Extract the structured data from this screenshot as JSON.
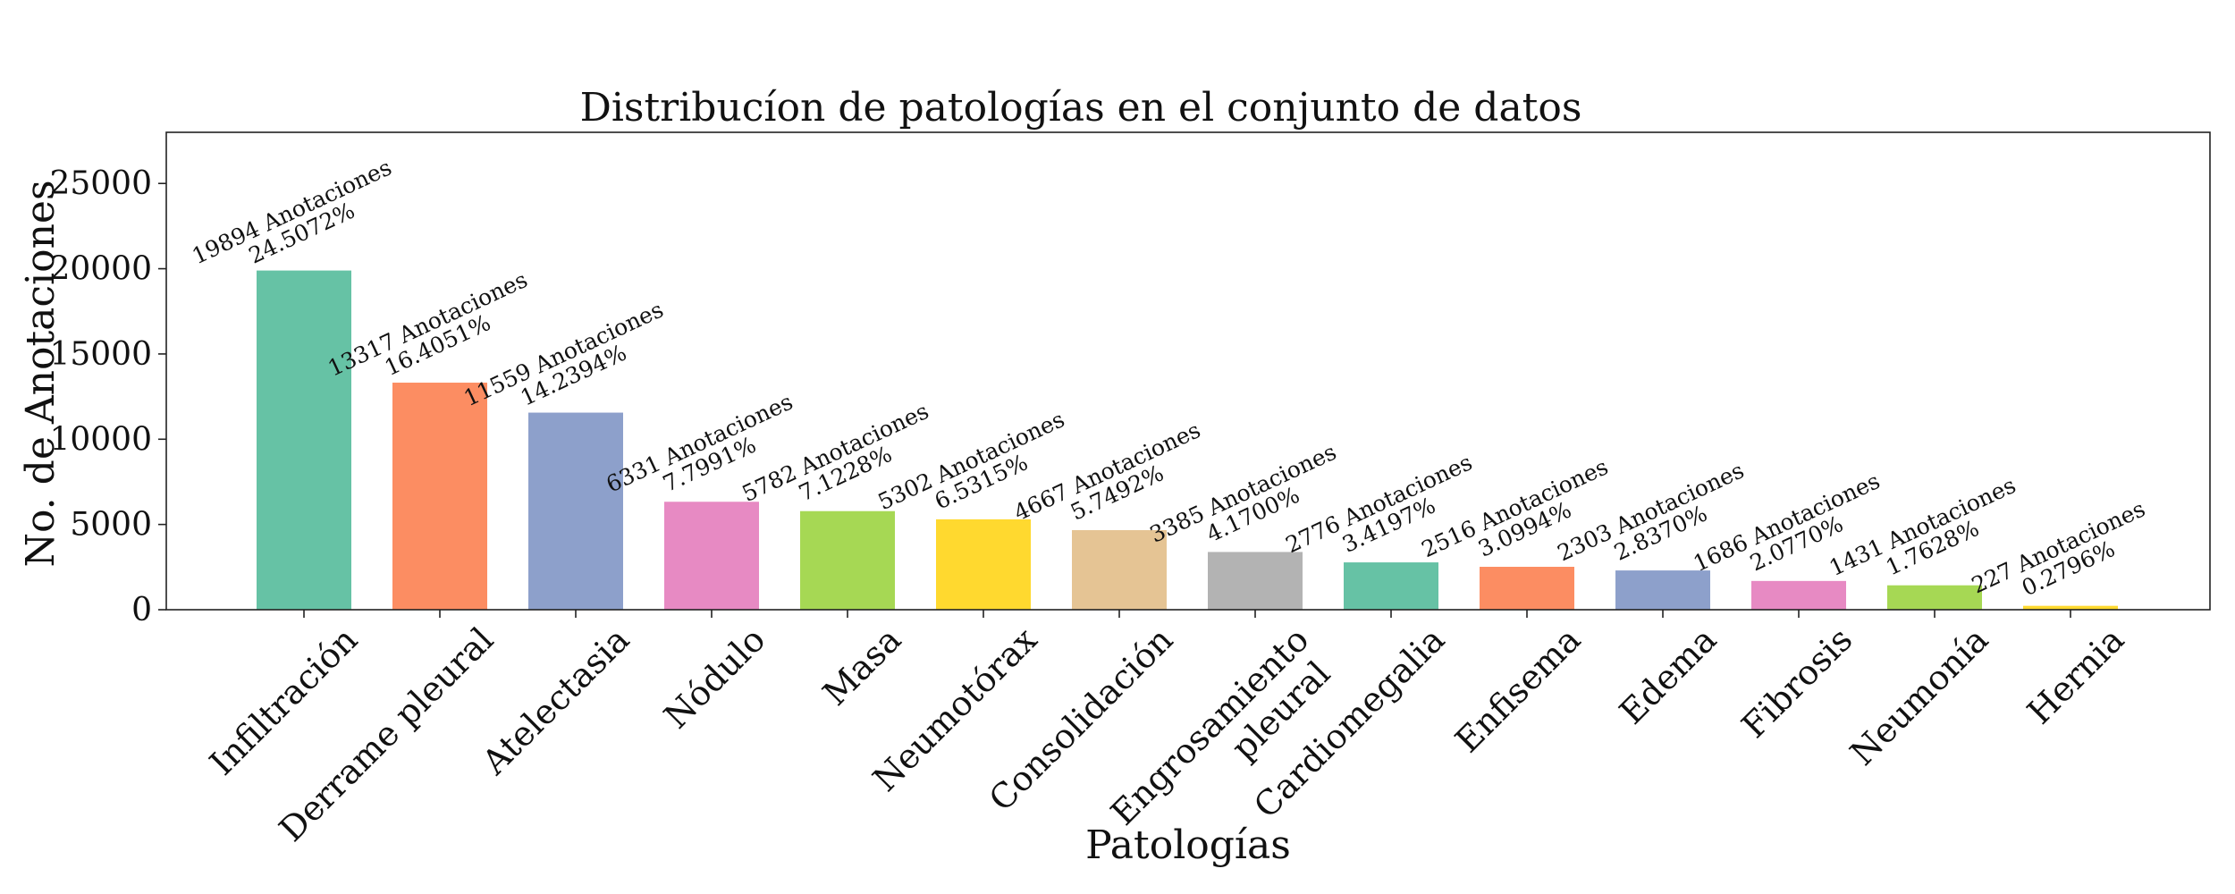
{
  "chart_data": {
    "type": "bar",
    "title": "Distribucíon de patologías en el conjunto de datos",
    "xlabel": "Patologías",
    "ylabel": "No. de Anotaciones",
    "ylim": [
      0,
      28000
    ],
    "yticks": [
      0,
      5000,
      10000,
      15000,
      20000,
      25000
    ],
    "grid": false,
    "categories": [
      "Infiltración",
      "Derrame pleural",
      "Atelectasia",
      "Nódulo",
      "Masa",
      "Neumotórax",
      "Consolidación",
      "Engrosamiento pleural",
      "Cardiomegalia",
      "Enfisema",
      "Edema",
      "Fibrosis",
      "Neumonía",
      "Hernia"
    ],
    "category_label_lines": [
      [
        "Infiltración"
      ],
      [
        "Derrame pleural"
      ],
      [
        "Atelectasia"
      ],
      [
        "Nódulo"
      ],
      [
        "Masa"
      ],
      [
        "Neumotórax"
      ],
      [
        "Consolidación"
      ],
      [
        "Engrosamiento",
        "pleural"
      ],
      [
        "Cardiomegalia"
      ],
      [
        "Enfisema"
      ],
      [
        "Edema"
      ],
      [
        "Fibrosis"
      ],
      [
        "Neumonía"
      ],
      [
        "Hernia"
      ]
    ],
    "values": [
      19894,
      13317,
      11559,
      6331,
      5782,
      5302,
      4667,
      3385,
      2776,
      2516,
      2303,
      1686,
      1431,
      227
    ],
    "count_labels": [
      "19894 Anotaciones",
      "13317 Anotaciones",
      "11559 Anotaciones",
      "6331 Anotaciones",
      "5782 Anotaciones",
      "5302 Anotaciones",
      "4667 Anotaciones",
      "3385 Anotaciones",
      "2776 Anotaciones",
      "2516 Anotaciones",
      "2303 Anotaciones",
      "1686 Anotaciones",
      "1431 Anotaciones",
      "227 Anotaciones"
    ],
    "percent_labels": [
      "24.5072%",
      "16.4051%",
      "14.2394%",
      "7.7991%",
      "7.1228%",
      "6.5315%",
      "5.7492%",
      "4.1700%",
      "3.4197%",
      "3.0994%",
      "2.8370%",
      "2.0770%",
      "1.7628%",
      "0.2796%"
    ],
    "colors": [
      "#66c2a5",
      "#fc8d62",
      "#8da0cb",
      "#e78ac3",
      "#a6d854",
      "#ffd92f",
      "#e5c494",
      "#b3b3b3",
      "#66c2a5",
      "#fc8d62",
      "#8da0cb",
      "#e78ac3",
      "#a6d854",
      "#ffd92f"
    ]
  }
}
